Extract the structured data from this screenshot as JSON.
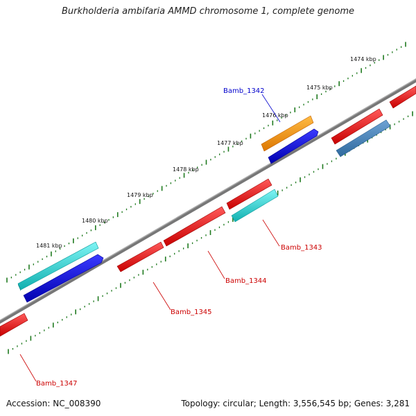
{
  "title": "Burkholderia ambifaria AMMD chromosome 1, complete genome",
  "accession": "Accession: NC_008390",
  "stats": "Topology: circular; Length: 3,556,545 bp; Genes: 3,281",
  "kbp_labels": [
    "1474 kbp",
    "1475 kbp",
    "1476 kbp",
    "1477 kbp",
    "1478 kbp",
    "1479 kbp",
    "1480 kbp",
    "1481 kbp"
  ],
  "gene_labels": {
    "bamb_1342": "Bamb_1342",
    "bamb_1343": "Bamb_1343",
    "bamb_1344": "Bamb_1344",
    "bamb_1345": "Bamb_1345",
    "bamb_1347": "Bamb_1347"
  },
  "colors": {
    "backbone": "#7a7a7a",
    "cds_red": "#ff0000",
    "cds_blue": "#0000e6",
    "cds_cyan": "#19d3d3",
    "cds_orange": "#ff9900",
    "cds_steel": "#3f7fb8",
    "tick_green": "#1f7a1f",
    "label_red": "#cc0000",
    "label_blue": "#0000cc"
  }
}
